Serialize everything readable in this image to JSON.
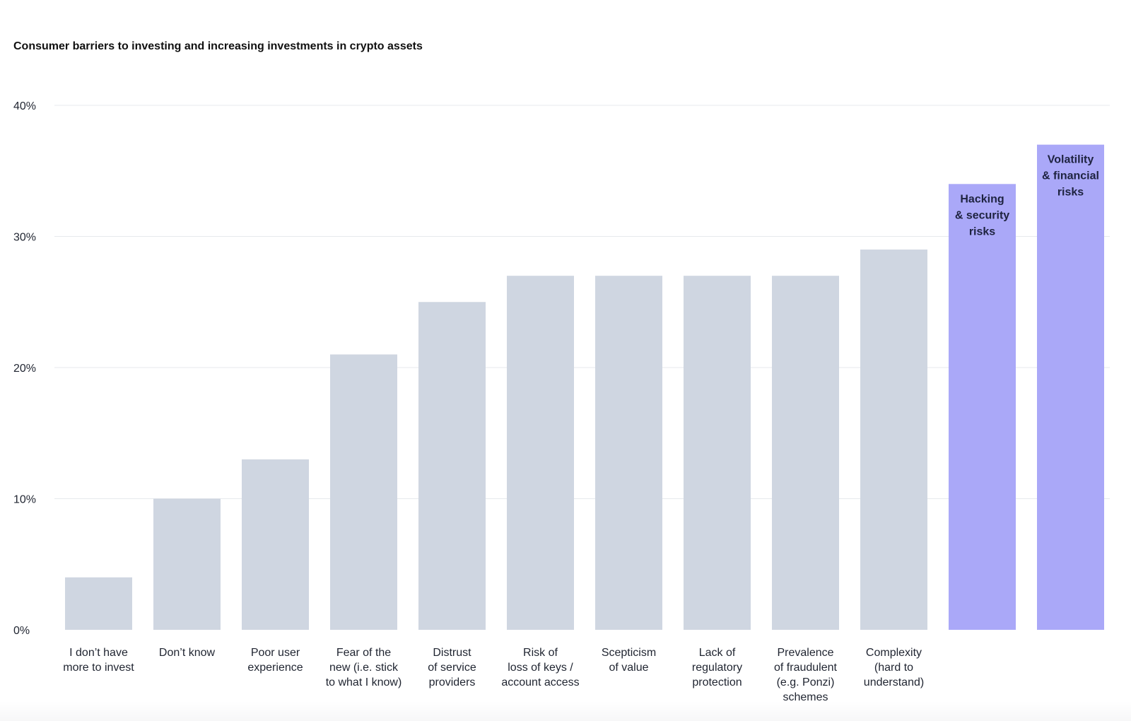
{
  "chart_data": {
    "type": "bar",
    "title": "Consumer barriers to investing and increasing investments in crypto assets",
    "xlabel": "",
    "ylabel": "",
    "ylim": [
      0,
      40
    ],
    "y_ticks": [
      "0%",
      "10%",
      "20%",
      "30%",
      "40%"
    ],
    "y_tick_values": [
      0,
      10,
      20,
      30,
      40
    ],
    "grid": true,
    "categories": [
      "I don’t have more to invest",
      "Don’t know",
      "Poor user experience",
      "Fear of the new (i.e. stick to what I know)",
      "Distrust of service providers",
      "Risk of loss of keys / account access",
      "Scepticism of value",
      "Lack of regulatory protection",
      "Prevalence of fraudulent (e.g. Ponzi) schemes",
      "Complexity (hard to understand)",
      "Hacking & security risks",
      "Volatility & financial risks"
    ],
    "category_label_lines": [
      [
        "I don’t have",
        "more to invest"
      ],
      [
        "Don’t know"
      ],
      [
        "Poor user",
        "experience"
      ],
      [
        "Fear of the",
        "new (i.e. stick",
        "to what I know)"
      ],
      [
        "Distrust",
        "of service",
        "providers"
      ],
      [
        "Risk of",
        "loss of keys /",
        "account access"
      ],
      [
        "Scepticism",
        "of value"
      ],
      [
        "Lack of",
        "regulatory",
        "protection"
      ],
      [
        "Prevalence",
        "of fraudulent",
        "(e.g. Ponzi)",
        "schemes"
      ],
      [
        "Complexity",
        "(hard to",
        "understand)"
      ],
      [
        "Hacking",
        "& security",
        "risks"
      ],
      [
        "Volatility",
        "& financial",
        "risks"
      ]
    ],
    "label_inside_bar": [
      false,
      false,
      false,
      false,
      false,
      false,
      false,
      false,
      false,
      false,
      true,
      true
    ],
    "values": [
      4,
      10,
      13,
      21,
      25,
      27,
      27,
      27,
      27,
      29,
      34,
      37
    ],
    "highlight": [
      false,
      false,
      false,
      false,
      false,
      false,
      false,
      false,
      false,
      false,
      true,
      true
    ],
    "colors": {
      "bar": "#cfd6e1",
      "highlight": "#aaa8f8",
      "grid": "#e7e9ed",
      "text": "#1f2430"
    }
  }
}
